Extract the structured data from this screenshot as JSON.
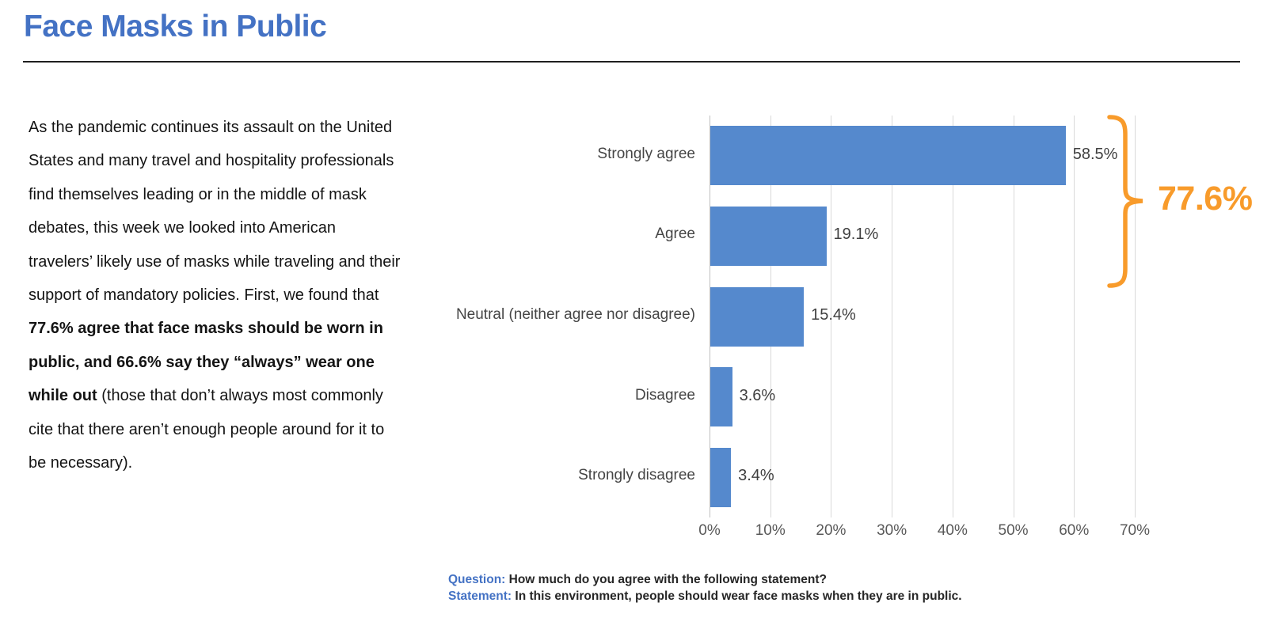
{
  "colors": {
    "title_blue": "#4472C4",
    "bar_blue": "#5589CD",
    "annotation_orange": "#F89B2B",
    "gridline_gray": "#D9D9D9",
    "axis_text_gray": "#595959",
    "body_text_dark": "#141414"
  },
  "header": {
    "title": "Face Masks in Public"
  },
  "body_text": {
    "segments": [
      {
        "bold": false,
        "text": "As the pandemic continues its assault on the United States and many travel and hospitality professionals find themselves leading or in the middle of mask debates, this week we looked into American travelers’ likely use of masks while traveling and their support of mandatory policies. First, we found that "
      },
      {
        "bold": true,
        "text": "77.6% agree that face masks should be worn in public, and 66.6% say they “always” wear one while out"
      },
      {
        "bold": false,
        "text": " (those that don’t always most commonly cite that there aren’t enough people around for it to be necessary)."
      }
    ]
  },
  "chart_data": {
    "type": "bar",
    "orientation": "horizontal",
    "categories": [
      "Strongly agree",
      "Agree",
      "Neutral (neither agree nor disagree)",
      "Disagree",
      "Strongly disagree"
    ],
    "values": [
      58.5,
      19.1,
      15.4,
      3.6,
      3.4
    ],
    "value_labels": [
      "58.5%",
      "19.1%",
      "15.4%",
      "3.6%",
      "3.4%"
    ],
    "xlim": [
      0,
      70
    ],
    "x_ticks": [
      {
        "value": 0,
        "label": "0%"
      },
      {
        "value": 10,
        "label": "10%"
      },
      {
        "value": 20,
        "label": "20%"
      },
      {
        "value": 30,
        "label": "30%"
      },
      {
        "value": 40,
        "label": "40%"
      },
      {
        "value": 50,
        "label": "50%"
      },
      {
        "value": 60,
        "label": "60%"
      },
      {
        "value": 70,
        "label": "70%"
      }
    ],
    "grid": true,
    "legend": "none",
    "annotation": {
      "label": "77.6%",
      "covers_categories": [
        "Strongly agree",
        "Agree"
      ],
      "color": "#F89B2B"
    }
  },
  "footnote": {
    "question_label": "Question:",
    "question_text": " How much do you agree with the following statement?",
    "statement_label": "Statement:",
    "statement_text": " In this environment, people should wear face masks when they are in public."
  }
}
